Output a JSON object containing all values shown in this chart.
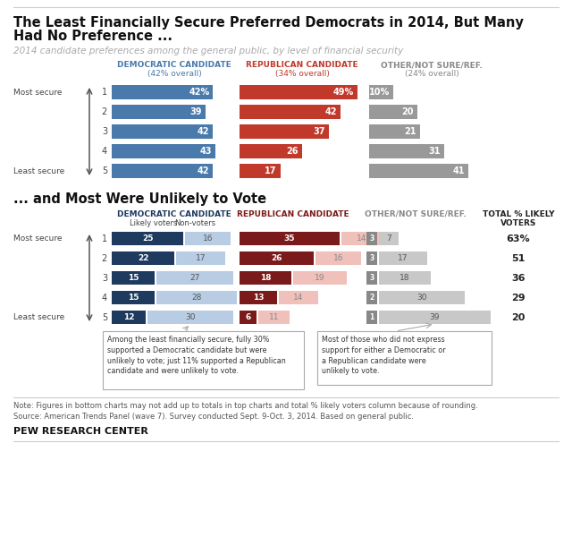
{
  "title_line1": "The Least Financially Secure Preferred Democrats in 2014, But Many",
  "title_line2": "Had No Preference ...",
  "subtitle": "2014 candidate preferences among the general public, by level of financial security",
  "section2_title": "... and Most Were Unlikely to Vote",
  "top_chart": {
    "dem_values": [
      42,
      39,
      42,
      43,
      42
    ],
    "rep_values": [
      49,
      42,
      37,
      26,
      17
    ],
    "other_values": [
      10,
      20,
      21,
      31,
      41
    ],
    "dem_color": "#4a7aab",
    "rep_color": "#c0392b",
    "other_color": "#999999",
    "dem_label_color": "#4a7aab",
    "rep_label_color": "#c0392b",
    "other_label_color": "#888888"
  },
  "bottom_chart": {
    "dem_likely": [
      25,
      22,
      15,
      15,
      12
    ],
    "dem_nonvoter": [
      16,
      17,
      27,
      28,
      30
    ],
    "rep_likely": [
      35,
      26,
      18,
      13,
      6
    ],
    "rep_nonvoter": [
      14,
      16,
      19,
      14,
      11
    ],
    "other_likely": [
      3,
      3,
      3,
      2,
      1
    ],
    "other_nonvoter": [
      7,
      17,
      18,
      30,
      39
    ],
    "total_likely": [
      "63%",
      "51",
      "36",
      "29",
      "20"
    ],
    "dem_likely_color": "#1f3a5f",
    "dem_nonvoter_color": "#b8cce4",
    "rep_likely_color": "#7b1a1a",
    "rep_nonvoter_color": "#f0c0bb",
    "other_likely_color": "#888888",
    "other_nonvoter_color": "#c8c8c8"
  },
  "callout1": "Among the least financially secure, fully 30%\nsupported a Democratic candidate but were\nunlikely to vote; just 11% supported a Republican\ncandidate and were unlikely to vote.",
  "callout2": "Most of those who did not express\nsupport for either a Democratic or\na Republican candidate were\nunlikely to vote.",
  "note": "Note: Figures in bottom charts may not add up to totals in top charts and total % likely voters column because of rounding.\nSource: American Trends Panel (wave 7). Survey conducted Sept. 9-Oct. 3, 2014. Based on general public.",
  "pew_label": "PEW RESEARCH CENTER",
  "bg_color": "#ffffff"
}
